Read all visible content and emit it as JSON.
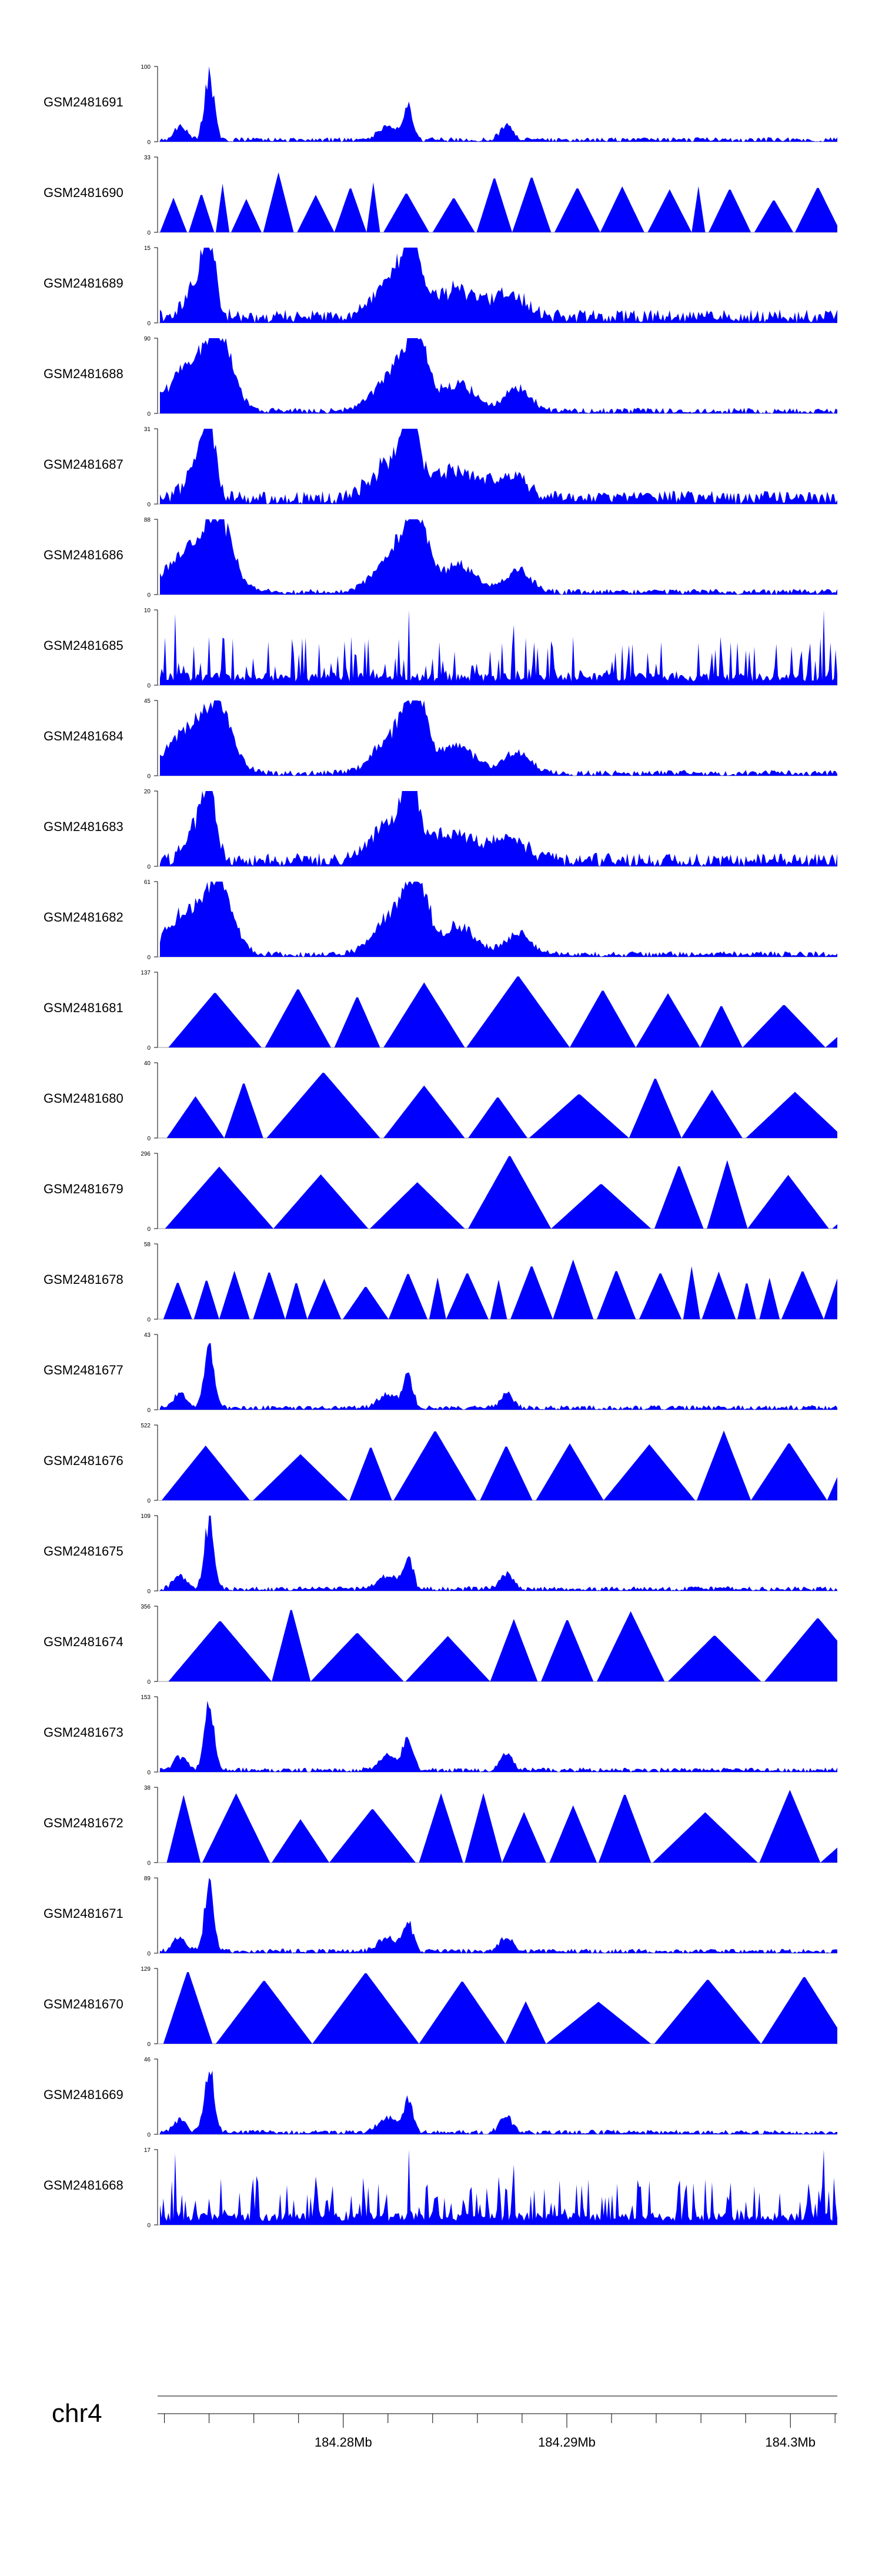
{
  "chart_data": {
    "type": "area",
    "title": "",
    "chromosome": "chr4",
    "x_unit": "Mb",
    "x_range": [
      184.2718,
      184.3021
    ],
    "x_ticks": [
      184.28,
      184.29,
      184.3
    ],
    "x_tick_labels": [
      "184.28Mb",
      "184.29Mb",
      "184.3Mb"
    ],
    "fill_color": "#0000ff",
    "series": [
      {
        "name": "GSM2481691",
        "ymax": 100,
        "pattern": "p2"
      },
      {
        "name": "GSM2481690",
        "ymax": 33,
        "pattern": "p6"
      },
      {
        "name": "GSM2481689",
        "ymax": 15,
        "pattern": "p3"
      },
      {
        "name": "GSM2481688",
        "ymax": 90,
        "pattern": "p1"
      },
      {
        "name": "GSM2481687",
        "ymax": 31,
        "pattern": "p3"
      },
      {
        "name": "GSM2481686",
        "ymax": 88,
        "pattern": "p1"
      },
      {
        "name": "GSM2481685",
        "ymax": 10,
        "pattern": "p4"
      },
      {
        "name": "GSM2481684",
        "ymax": 45,
        "pattern": "p1"
      },
      {
        "name": "GSM2481683",
        "ymax": 20,
        "pattern": "p3"
      },
      {
        "name": "GSM2481682",
        "ymax": 61,
        "pattern": "p1"
      },
      {
        "name": "GSM2481681",
        "ymax": 137,
        "pattern": "p5"
      },
      {
        "name": "GSM2481680",
        "ymax": 40,
        "pattern": "p5"
      },
      {
        "name": "GSM2481679",
        "ymax": 296,
        "pattern": "p5"
      },
      {
        "name": "GSM2481678",
        "ymax": 58,
        "pattern": "p6"
      },
      {
        "name": "GSM2481677",
        "ymax": 43,
        "pattern": "p2"
      },
      {
        "name": "GSM2481676",
        "ymax": 522,
        "pattern": "p5"
      },
      {
        "name": "GSM2481675",
        "ymax": 109,
        "pattern": "p2"
      },
      {
        "name": "GSM2481674",
        "ymax": 356,
        "pattern": "p5"
      },
      {
        "name": "GSM2481673",
        "ymax": 153,
        "pattern": "p2"
      },
      {
        "name": "GSM2481672",
        "ymax": 38,
        "pattern": "p5"
      },
      {
        "name": "GSM2481671",
        "ymax": 89,
        "pattern": "p2"
      },
      {
        "name": "GSM2481670",
        "ymax": 129,
        "pattern": "p5"
      },
      {
        "name": "GSM2481669",
        "ymax": 46,
        "pattern": "p2"
      },
      {
        "name": "GSM2481668",
        "ymax": 17,
        "pattern": "p4"
      }
    ],
    "patterns": {
      "p1": {
        "kind": "peaks",
        "segments": [
          [
            184.2718,
            184.3021,
            0.05
          ]
        ],
        "peaks": [
          [
            184.2733,
            0.65,
            0.0015
          ],
          [
            184.2745,
            0.75,
            0.0008
          ],
          [
            184.2823,
            0.55,
            0.0012
          ],
          [
            184.2833,
            0.92,
            0.0007
          ],
          [
            184.2852,
            0.4,
            0.001
          ],
          [
            184.2878,
            0.32,
            0.0008
          ]
        ]
      },
      "p2": {
        "kind": "peaks",
        "segments": [
          [
            184.2718,
            184.3021,
            0.04
          ]
        ],
        "peaks": [
          [
            184.274,
            0.95,
            0.0003
          ],
          [
            184.2727,
            0.2,
            0.0004
          ],
          [
            184.2829,
            0.45,
            0.0003
          ],
          [
            184.282,
            0.2,
            0.0006
          ],
          [
            184.2873,
            0.22,
            0.0004
          ]
        ]
      },
      "p3": {
        "kind": "peaks",
        "segments": [
          [
            184.2718,
            184.3021,
            0.12
          ]
        ],
        "peaks": [
          [
            184.274,
            0.9,
            0.0004
          ],
          [
            184.2735,
            0.5,
            0.0007
          ],
          [
            184.283,
            0.95,
            0.0005
          ],
          [
            184.2822,
            0.55,
            0.0012
          ],
          [
            184.285,
            0.4,
            0.0015
          ],
          [
            184.2875,
            0.3,
            0.001
          ]
        ]
      },
      "p4": {
        "kind": "spiky",
        "density": 280,
        "base": 0.05,
        "amp": 0.6,
        "peaks": [
          [
            184.2829,
            1.0
          ],
          [
            184.3015,
            1.0
          ],
          [
            184.2876,
            0.8
          ],
          [
            184.2725,
            0.95
          ]
        ]
      },
      "p5": {
        "kind": "triangles",
        "density": 8,
        "base": 0.0,
        "amp": 1.0
      },
      "p6": {
        "kind": "triangles",
        "density": 20,
        "base": 0.0,
        "amp": 0.8
      }
    }
  }
}
